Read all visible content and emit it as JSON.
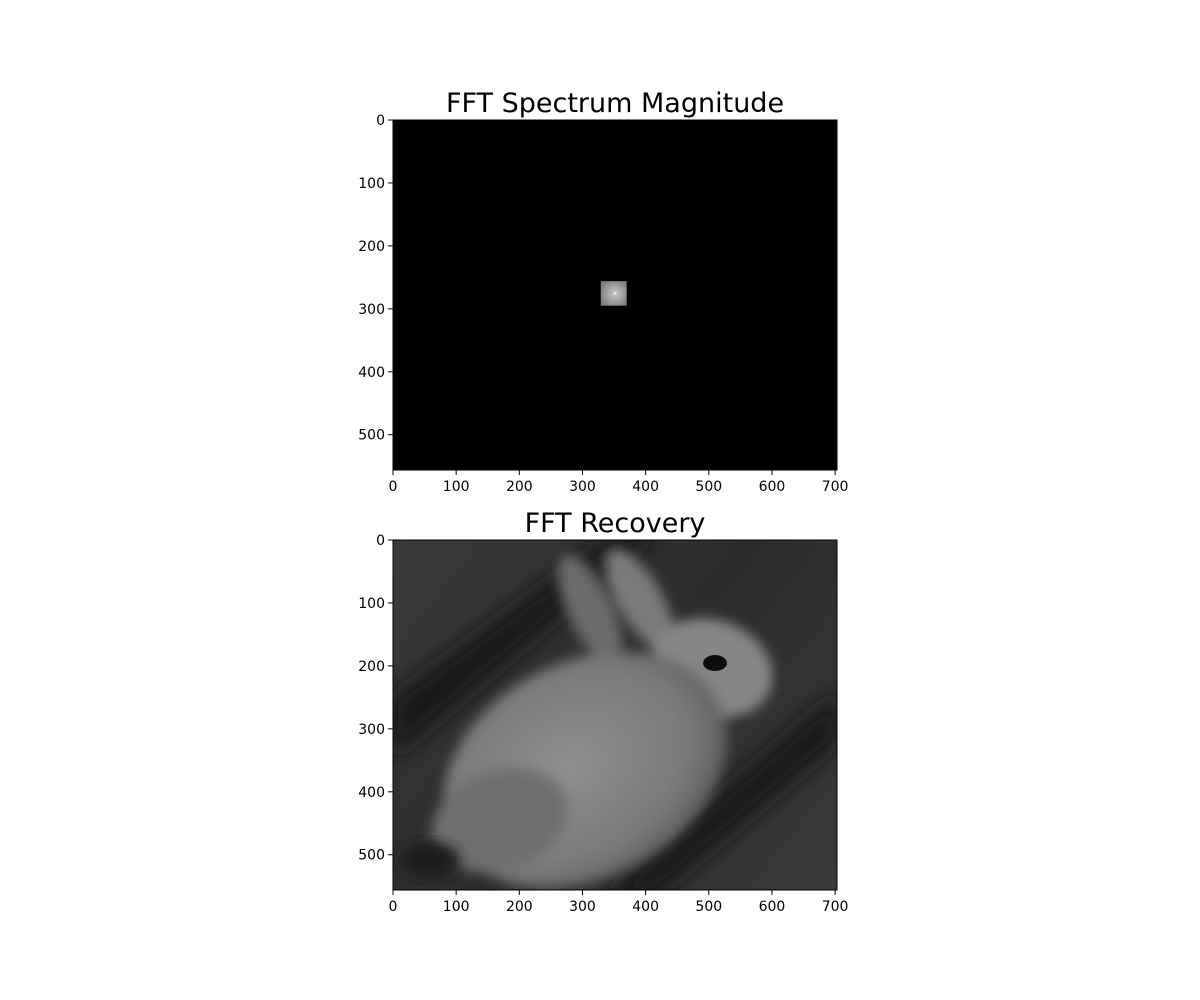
{
  "chart_data": [
    {
      "type": "heatmap",
      "title": "FFT Spectrum Magnitude",
      "colormap": "gray",
      "xlim": [
        0,
        703
      ],
      "ylim": [
        556,
        0
      ],
      "x_ticks": [
        0,
        100,
        200,
        300,
        400,
        500,
        600,
        700
      ],
      "y_ticks": [
        0,
        100,
        200,
        300,
        400,
        500
      ],
      "x_tick_labels": [
        "0",
        "100",
        "200",
        "300",
        "400",
        "500",
        "600",
        "700"
      ],
      "y_tick_labels": [
        "0",
        "100",
        "200",
        "300",
        "400",
        "500"
      ],
      "content": {
        "background_level": 0,
        "bright_patch": {
          "x": [
            329,
            370
          ],
          "y": [
            256,
            295
          ],
          "center": [
            350,
            278
          ],
          "level": 0.6
        }
      }
    },
    {
      "type": "heatmap",
      "title": "FFT Recovery",
      "colormap": "gray",
      "xlim": [
        0,
        703
      ],
      "ylim": [
        556,
        0
      ],
      "x_ticks": [
        0,
        100,
        200,
        300,
        400,
        500,
        600,
        700
      ],
      "y_ticks": [
        0,
        100,
        200,
        300,
        400,
        500
      ],
      "x_tick_labels": [
        "0",
        "100",
        "200",
        "300",
        "400",
        "500",
        "600",
        "700"
      ],
      "y_tick_labels": [
        "0",
        "100",
        "200",
        "300",
        "400",
        "500"
      ],
      "content": {
        "subject": "rabbit",
        "body_center": [
          310,
          390
        ],
        "eye": [
          508,
          195
        ]
      }
    }
  ],
  "colors": {
    "figure_background": "#ffffff",
    "axes_edge": "#000000",
    "spectrum_background": "#000000",
    "patch_fill": "#8e8e8e",
    "recovery_background": "#2f2f2f",
    "rabbit_fill": "#8a8a8a"
  }
}
